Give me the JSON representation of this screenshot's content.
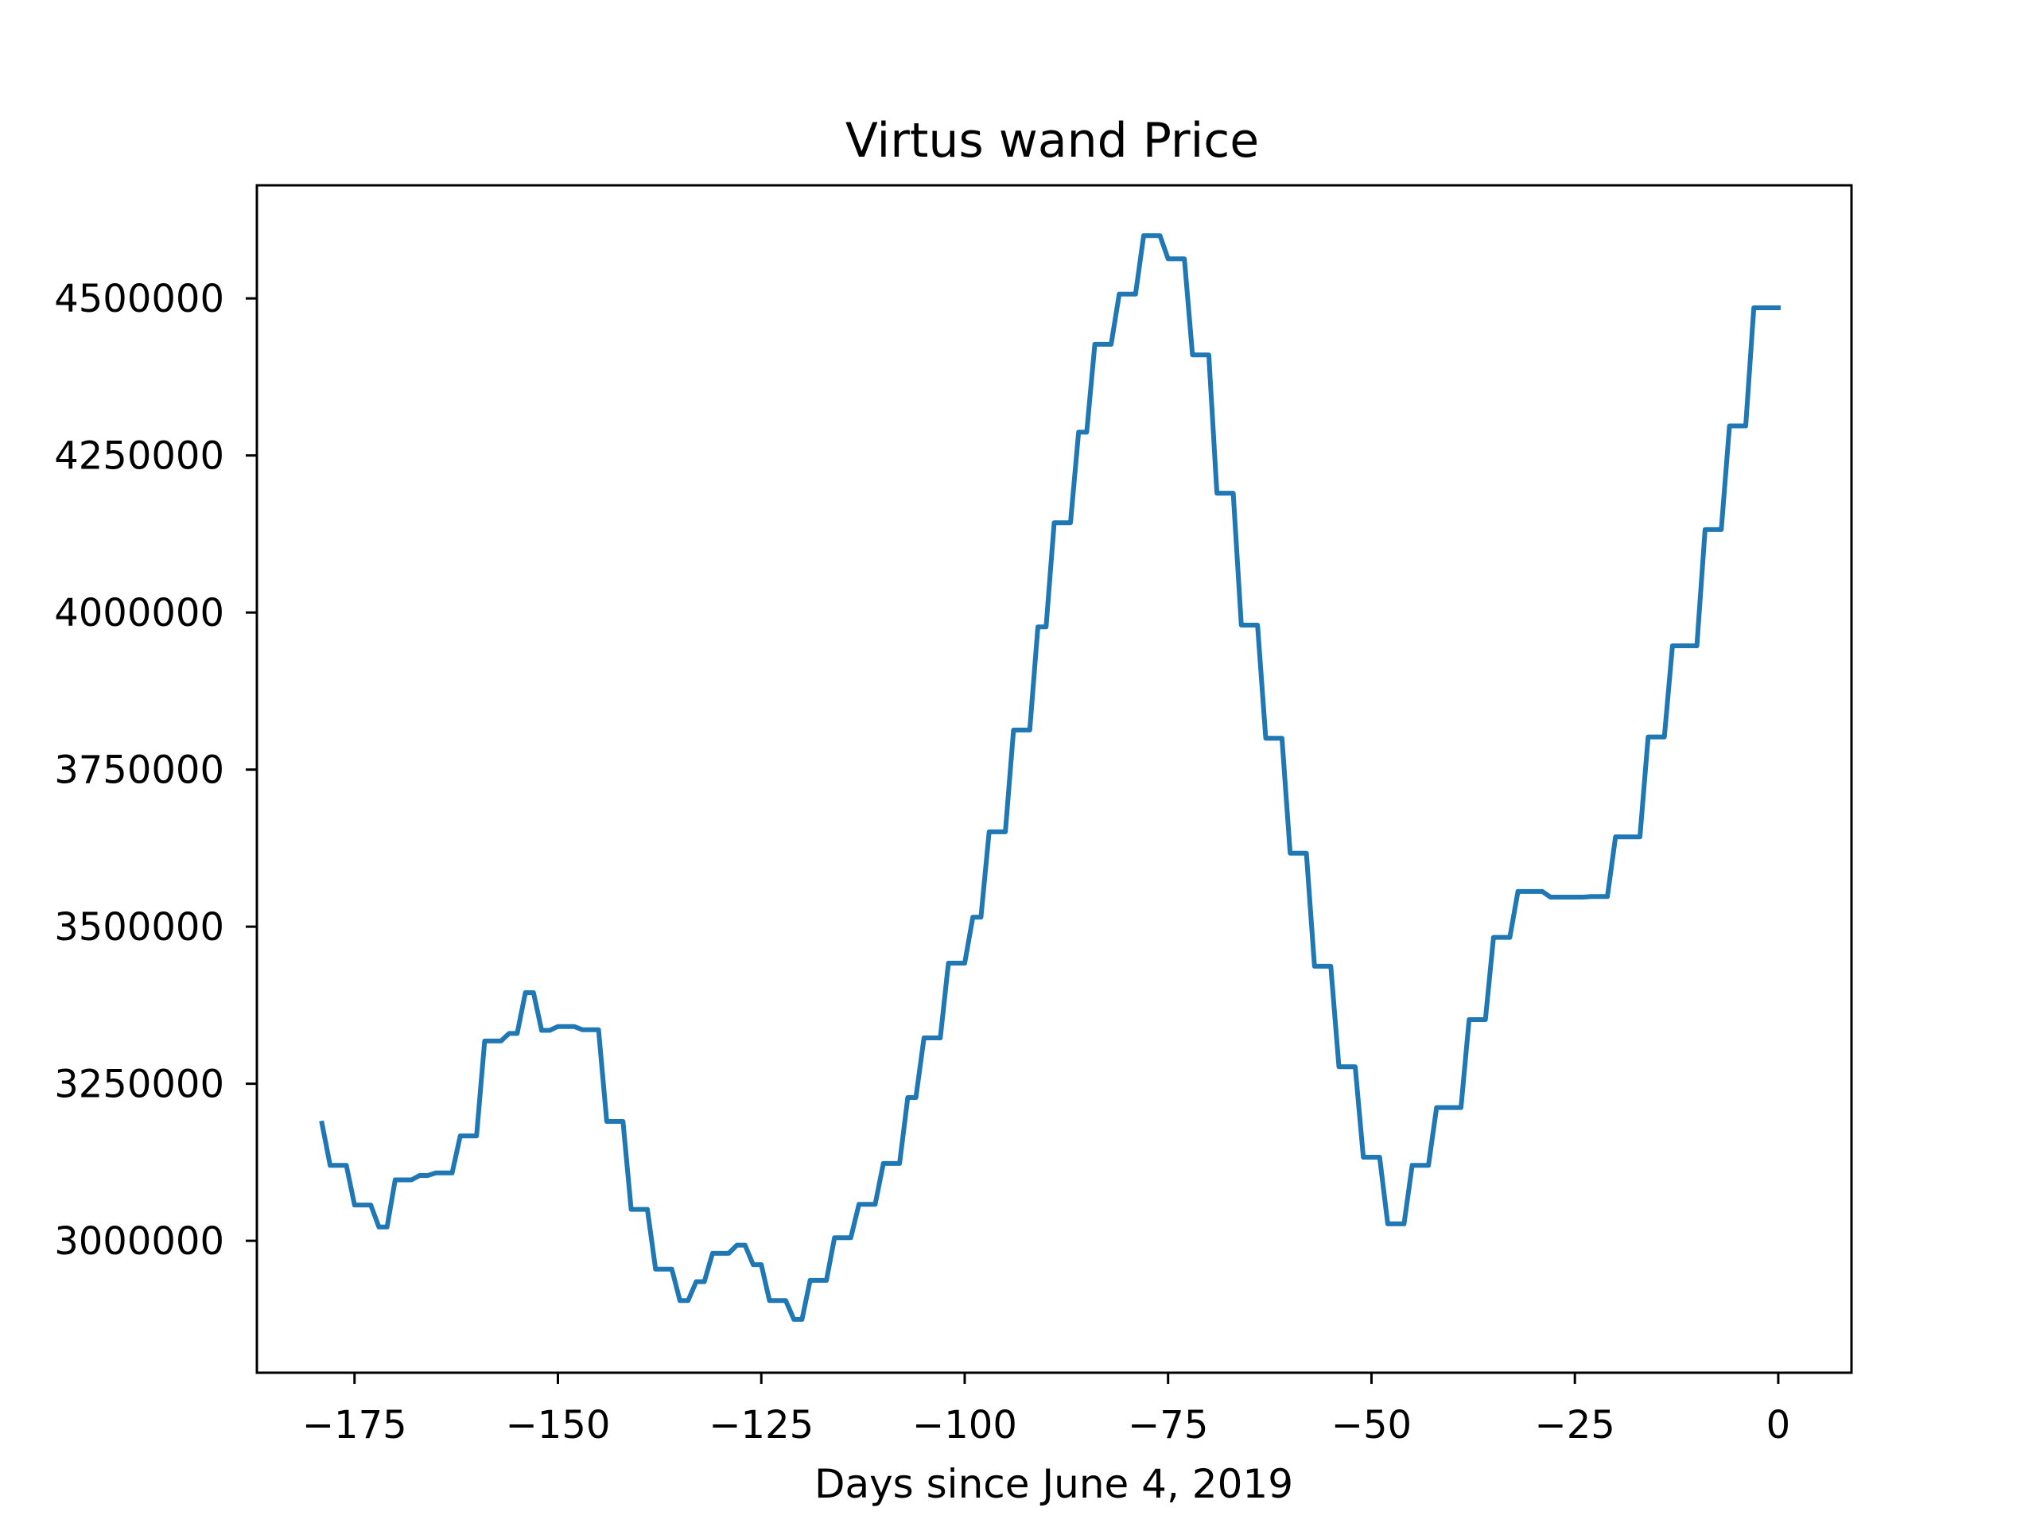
{
  "chart_data": {
    "type": "line",
    "title": "Virtus wand Price",
    "xlabel": "Days since June 4, 2019",
    "ylabel": "",
    "xlim": [
      -187,
      9
    ],
    "ylim": [
      2790000,
      4680000
    ],
    "grid": false,
    "legend": "none",
    "x_ticks": [
      {
        "value": -175,
        "label": "−175"
      },
      {
        "value": -150,
        "label": "−150"
      },
      {
        "value": -125,
        "label": "−125"
      },
      {
        "value": -100,
        "label": "−100"
      },
      {
        "value": -75,
        "label": "−75"
      },
      {
        "value": -50,
        "label": "−50"
      },
      {
        "value": -25,
        "label": "−25"
      },
      {
        "value": 0,
        "label": "0"
      }
    ],
    "y_ticks": [
      {
        "value": 3000000,
        "label": "3000000"
      },
      {
        "value": 3250000,
        "label": "3250000"
      },
      {
        "value": 3500000,
        "label": "3500000"
      },
      {
        "value": 3750000,
        "label": "3750000"
      },
      {
        "value": 4000000,
        "label": "4000000"
      },
      {
        "value": 4250000,
        "label": "4250000"
      },
      {
        "value": 4500000,
        "label": "4500000"
      }
    ],
    "series": [
      {
        "color": "#1f77b4",
        "points": [
          [
            -179,
            3187000
          ],
          [
            -178,
            3120000
          ],
          [
            -176,
            3120000
          ],
          [
            -175,
            3057000
          ],
          [
            -173,
            3057000
          ],
          [
            -172,
            3022000
          ],
          [
            -171,
            3022000
          ],
          [
            -170,
            3097000
          ],
          [
            -168,
            3097000
          ],
          [
            -167,
            3104000
          ],
          [
            -166,
            3104000
          ],
          [
            -165,
            3108000
          ],
          [
            -163,
            3108000
          ],
          [
            -162,
            3167000
          ],
          [
            -160,
            3167000
          ],
          [
            -159,
            3318000
          ],
          [
            -157,
            3318000
          ],
          [
            -156,
            3330000
          ],
          [
            -155,
            3330000
          ],
          [
            -154,
            3395000
          ],
          [
            -153,
            3395000
          ],
          [
            -152,
            3335000
          ],
          [
            -151,
            3335000
          ],
          [
            -150,
            3341000
          ],
          [
            -148,
            3341000
          ],
          [
            -147,
            3336000
          ],
          [
            -145,
            3336000
          ],
          [
            -144,
            3190000
          ],
          [
            -142,
            3190000
          ],
          [
            -141,
            3050000
          ],
          [
            -139,
            3050000
          ],
          [
            -138,
            2955000
          ],
          [
            -136,
            2955000
          ],
          [
            -135,
            2905000
          ],
          [
            -134,
            2905000
          ],
          [
            -133,
            2935000
          ],
          [
            -132,
            2935000
          ],
          [
            -131,
            2980000
          ],
          [
            -129,
            2980000
          ],
          [
            -128,
            2993000
          ],
          [
            -127,
            2993000
          ],
          [
            -126,
            2962000
          ],
          [
            -125,
            2962000
          ],
          [
            -124,
            2905000
          ],
          [
            -122,
            2905000
          ],
          [
            -121,
            2875000
          ],
          [
            -120,
            2875000
          ],
          [
            -119,
            2937000
          ],
          [
            -117,
            2937000
          ],
          [
            -116,
            3005000
          ],
          [
            -114,
            3005000
          ],
          [
            -113,
            3058000
          ],
          [
            -111,
            3058000
          ],
          [
            -110,
            3123000
          ],
          [
            -108,
            3123000
          ],
          [
            -107,
            3228000
          ],
          [
            -106,
            3228000
          ],
          [
            -105,
            3323000
          ],
          [
            -103,
            3323000
          ],
          [
            -102,
            3442000
          ],
          [
            -100,
            3442000
          ],
          [
            -99,
            3515000
          ],
          [
            -98,
            3515000
          ],
          [
            -97,
            3651000
          ],
          [
            -95,
            3651000
          ],
          [
            -94,
            3813000
          ],
          [
            -92,
            3813000
          ],
          [
            -91,
            3977000
          ],
          [
            -90,
            3977000
          ],
          [
            -89,
            4143000
          ],
          [
            -87,
            4143000
          ],
          [
            -86,
            4287000
          ],
          [
            -85,
            4287000
          ],
          [
            -84,
            4427000
          ],
          [
            -82,
            4427000
          ],
          [
            -81,
            4507000
          ],
          [
            -79,
            4507000
          ],
          [
            -78,
            4600000
          ],
          [
            -76,
            4600000
          ],
          [
            -75,
            4563000
          ],
          [
            -73,
            4563000
          ],
          [
            -72,
            4410000
          ],
          [
            -70,
            4410000
          ],
          [
            -69,
            4190000
          ],
          [
            -67,
            4190000
          ],
          [
            -66,
            3980000
          ],
          [
            -64,
            3980000
          ],
          [
            -63,
            3800000
          ],
          [
            -61,
            3800000
          ],
          [
            -60,
            3617000
          ],
          [
            -58,
            3617000
          ],
          [
            -57,
            3437000
          ],
          [
            -55,
            3437000
          ],
          [
            -54,
            3277000
          ],
          [
            -52,
            3277000
          ],
          [
            -51,
            3133000
          ],
          [
            -49,
            3133000
          ],
          [
            -48,
            3027000
          ],
          [
            -46,
            3027000
          ],
          [
            -45,
            3120000
          ],
          [
            -43,
            3120000
          ],
          [
            -42,
            3212000
          ],
          [
            -39,
            3212000
          ],
          [
            -38,
            3352000
          ],
          [
            -36,
            3352000
          ],
          [
            -35,
            3483000
          ],
          [
            -33,
            3483000
          ],
          [
            -32,
            3556000
          ],
          [
            -29,
            3556000
          ],
          [
            -28,
            3547000
          ],
          [
            -24,
            3547000
          ],
          [
            -23,
            3548000
          ],
          [
            -21,
            3548000
          ],
          [
            -20,
            3643000
          ],
          [
            -17,
            3643000
          ],
          [
            -16,
            3802000
          ],
          [
            -14,
            3802000
          ],
          [
            -13,
            3947000
          ],
          [
            -10,
            3947000
          ],
          [
            -9,
            4132000
          ],
          [
            -7,
            4132000
          ],
          [
            -6,
            4297000
          ],
          [
            -4,
            4297000
          ],
          [
            -3,
            4485000
          ],
          [
            0,
            4485000
          ]
        ]
      }
    ]
  }
}
